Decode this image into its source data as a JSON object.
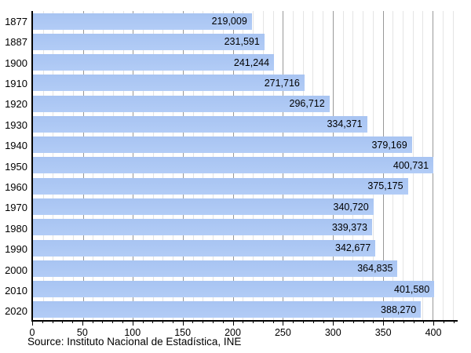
{
  "chart_data": {
    "type": "bar",
    "orientation": "horizontal",
    "title": "",
    "categories": [
      "1877",
      "1887",
      "1900",
      "1910",
      "1920",
      "1930",
      "1940",
      "1950",
      "1960",
      "1970",
      "1980",
      "1990",
      "2000",
      "2010",
      "2020"
    ],
    "values": [
      219009,
      231591,
      241244,
      271716,
      296712,
      334371,
      379169,
      400731,
      375175,
      340720,
      339373,
      342677,
      364835,
      401580,
      388270
    ],
    "value_labels": [
      "219,009",
      "231,591",
      "241,244",
      "271,716",
      "296,712",
      "334,371",
      "379,169",
      "400,731",
      "375,175",
      "340,720",
      "339,373",
      "342,677",
      "364,835",
      "401,580",
      "388,270"
    ],
    "xlabel": "",
    "ylabel": "",
    "axis_unit": "thousands",
    "xlim": [
      0,
      425
    ],
    "x_major_step": 50,
    "x_minor_step": 10,
    "x_major_tick_labels": [
      "0",
      "50",
      "100",
      "150",
      "200",
      "250",
      "300",
      "350",
      "400"
    ],
    "grid": "vertical, minor and major, behind bars",
    "legend": "none",
    "source": "Source: Instituto Nacional de Estadística, INE",
    "colors": {
      "bar_fill": "#a8c4f2",
      "bar_fill_bottom": "#b2ccf6",
      "grid_minor": "#e4e4e4",
      "grid_major": "#999999",
      "axis": "#000000",
      "text": "#000000",
      "background": "#ffffff"
    }
  }
}
